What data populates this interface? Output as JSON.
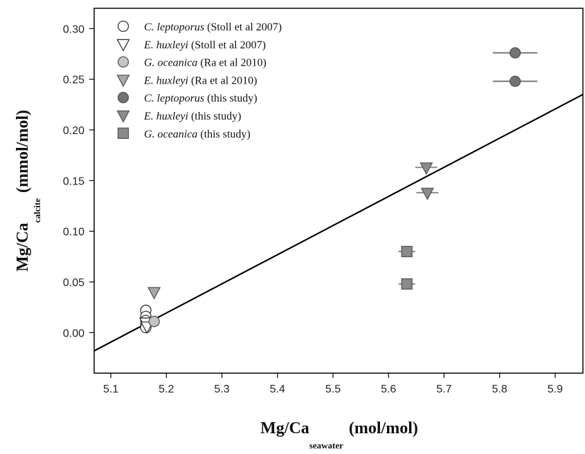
{
  "chart_data": {
    "type": "scatter",
    "title": "",
    "xlabel": {
      "main": "Mg/Ca",
      "sub": "seawater",
      "unit": "(mol/mol)"
    },
    "ylabel": {
      "main": "Mg/Ca",
      "sub": "calcite",
      "unit": "(mmol/mol)"
    },
    "xlim": [
      5.07,
      5.95
    ],
    "ylim": [
      -0.04,
      0.32
    ],
    "xticks": [
      "5.1",
      "5.2",
      "5.3",
      "5.4",
      "5.5",
      "5.6",
      "5.7",
      "5.8",
      "5.9"
    ],
    "yticks": [
      "0.00",
      "0.05",
      "0.10",
      "0.15",
      "0.20",
      "0.25",
      "0.30"
    ],
    "grid": false,
    "legend_position": "top-left",
    "series": [
      {
        "name": "C. leptoporus",
        "source": "(Stoll et al 2007)",
        "marker": "circle",
        "fill": "#ffffff",
        "points": [
          [
            5.163,
            0.022
          ],
          [
            5.163,
            0.016
          ],
          [
            5.163,
            0.012
          ],
          [
            5.163,
            0.008
          ],
          [
            5.163,
            0.005
          ]
        ]
      },
      {
        "name": "E. huxleyi",
        "source": "(Stoll et al 2007)",
        "marker": "triangle-down",
        "fill": "#ffffff",
        "points": [
          [
            5.163,
            0.01
          ],
          [
            5.165,
            0.006
          ]
        ]
      },
      {
        "name": "G. oceanica",
        "source": "(Ra et al 2010)",
        "marker": "circle",
        "fill": "#c4c4c4",
        "points": [
          [
            5.178,
            0.011
          ]
        ]
      },
      {
        "name": "E. huxleyi",
        "source": "(Ra et al 2010)",
        "marker": "triangle-down",
        "fill": "#a8a8a8",
        "points": [
          [
            5.178,
            0.04
          ]
        ]
      },
      {
        "name": "C. leptoporus",
        "source": "(this study)",
        "marker": "circle",
        "fill": "#737373",
        "points": [
          [
            5.828,
            0.276
          ],
          [
            5.828,
            0.248
          ]
        ],
        "xerr": 0.04
      },
      {
        "name": "E. huxleyi",
        "source": "(this study)",
        "marker": "triangle-down",
        "fill": "#8c8c8c",
        "points": [
          [
            5.668,
            0.163
          ],
          [
            5.67,
            0.138
          ]
        ],
        "xerr": 0.02
      },
      {
        "name": "G. oceanica",
        "source": "(this study)",
        "marker": "square",
        "fill": "#8a8a8a",
        "points": [
          [
            5.633,
            0.08
          ],
          [
            5.633,
            0.048
          ]
        ],
        "xerr": 0.015
      }
    ],
    "fit_line": {
      "x": [
        5.07,
        5.95
      ],
      "y": [
        -0.018,
        0.235
      ]
    }
  }
}
